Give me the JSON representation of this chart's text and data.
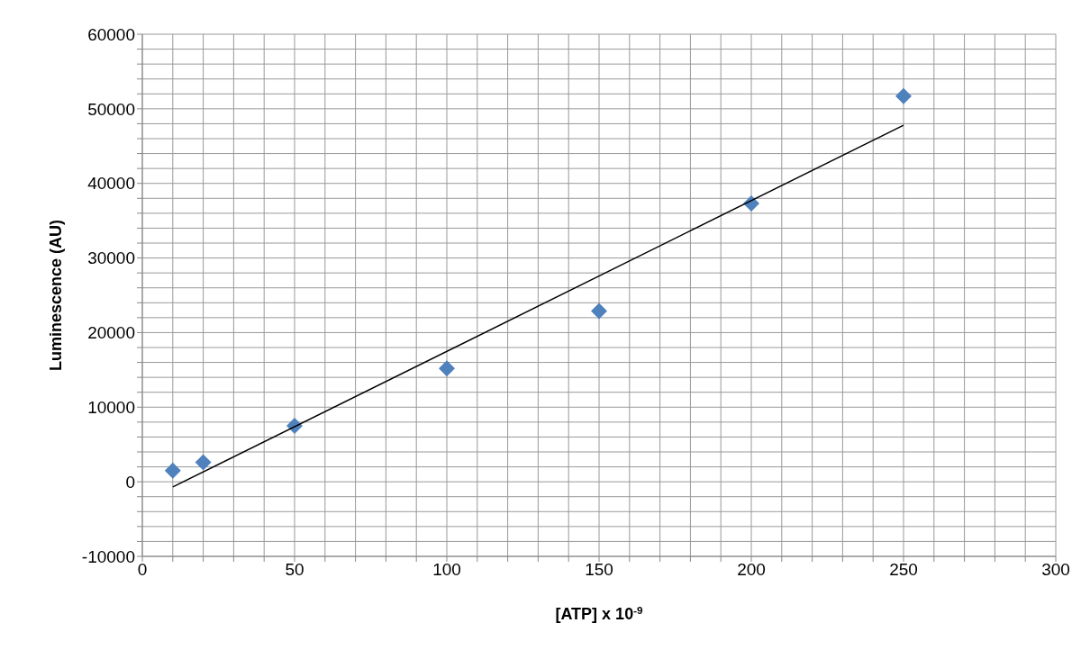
{
  "chart_data": {
    "type": "scatter",
    "xlabel": "[ATP] x 10$^{-9}$",
    "ylabel": "Luminescence (AU)",
    "xlim": [
      0,
      300
    ],
    "ylim": [
      -10000,
      60000
    ],
    "xticks": [
      0,
      {
        "value": 10,
        "label": null
      },
      {
        "value": 20,
        "label": null
      },
      {
        "value": 30,
        "label": null
      },
      {
        "value": 40,
        "label": null
      },
      50,
      {
        "value": 60,
        "label": null
      },
      {
        "value": 70,
        "label": null
      },
      {
        "value": 80,
        "label": null
      },
      {
        "value": 90,
        "label": null
      },
      100,
      {
        "value": 110,
        "label": null
      },
      {
        "value": 120,
        "label": null
      },
      {
        "value": 130,
        "label": null
      },
      {
        "value": 140,
        "label": null
      },
      150,
      {
        "value": 160,
        "label": null
      },
      {
        "value": 170,
        "label": null
      },
      {
        "value": 180,
        "label": null
      },
      {
        "value": 190,
        "label": null
      },
      200,
      {
        "value": 210,
        "label": null
      },
      {
        "value": 220,
        "label": null
      },
      {
        "value": 230,
        "label": null
      },
      {
        "value": 240,
        "label": null
      },
      250,
      {
        "value": 260,
        "label": null
      },
      {
        "value": 270,
        "label": null
      },
      {
        "value": 280,
        "label": null
      },
      {
        "value": 290,
        "label": null
      },
      300
    ],
    "yticks": [
      -10000,
      {
        "value": -8000,
        "label": null
      },
      {
        "value": -6000,
        "label": null
      },
      {
        "value": -4000,
        "label": null
      },
      {
        "value": -2000,
        "label": null
      },
      0,
      {
        "value": 2000,
        "label": null
      },
      {
        "value": 4000,
        "label": null
      },
      {
        "value": 6000,
        "label": null
      },
      {
        "value": 8000,
        "label": null
      },
      10000,
      {
        "value": 12000,
        "label": null
      },
      {
        "value": 14000,
        "label": null
      },
      {
        "value": 16000,
        "label": null
      },
      {
        "value": 18000,
        "label": null
      },
      20000,
      {
        "value": 22000,
        "label": null
      },
      {
        "value": 24000,
        "label": null
      },
      {
        "value": 26000,
        "label": null
      },
      {
        "value": 28000,
        "label": null
      },
      30000,
      {
        "value": 32000,
        "label": null
      },
      {
        "value": 34000,
        "label": null
      },
      {
        "value": 36000,
        "label": null
      },
      {
        "value": 38000,
        "label": null
      },
      40000,
      {
        "value": 42000,
        "label": null
      },
      {
        "value": 44000,
        "label": null
      },
      {
        "value": 46000,
        "label": null
      },
      {
        "value": 48000,
        "label": null
      },
      50000,
      {
        "value": 52000,
        "label": null
      },
      {
        "value": 54000,
        "label": null
      },
      {
        "value": 56000,
        "label": null
      },
      {
        "value": 58000,
        "label": null
      },
      60000
    ],
    "grid": true,
    "series": [
      {
        "marker": "diamond",
        "color": "#4f81bd",
        "x": [
          10,
          20,
          50,
          100,
          150,
          200,
          250
        ],
        "values": [
          1500,
          2600,
          7500,
          15200,
          22900,
          37300,
          51700
        ]
      },
      {
        "type": "line",
        "marker": "none",
        "color": "#000000",
        "x": [
          10,
          250
        ],
        "values": [
          -700,
          47800
        ]
      }
    ]
  }
}
